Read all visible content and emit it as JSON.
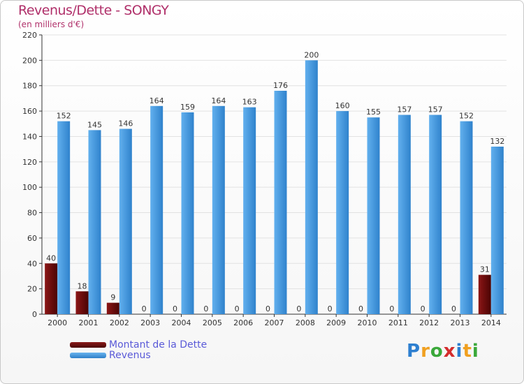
{
  "chart_data": {
    "type": "bar",
    "title": "Revenus/Dette - SONGY",
    "subtitle": "(en milliers d'€)",
    "categories": [
      "2000",
      "2001",
      "2002",
      "2003",
      "2004",
      "2005",
      "2006",
      "2007",
      "2008",
      "2009",
      "2010",
      "2011",
      "2012",
      "2013",
      "2014"
    ],
    "series": [
      {
        "name": "Montant de la Dette",
        "color": "#6b0a0a",
        "values": [
          40,
          18,
          9,
          0,
          0,
          0,
          0,
          0,
          0,
          0,
          0,
          0,
          0,
          0,
          31
        ]
      },
      {
        "name": "Revenus",
        "color": "#3d95dc",
        "values": [
          152,
          145,
          146,
          164,
          159,
          164,
          163,
          176,
          200,
          160,
          155,
          157,
          157,
          152,
          132
        ]
      }
    ],
    "ylim": [
      0,
      220
    ],
    "yticks": [
      0,
      20,
      40,
      60,
      80,
      100,
      120,
      140,
      160,
      180,
      200,
      220
    ],
    "grid": true,
    "legend_position": "bottom-left"
  },
  "logo": {
    "letters": [
      "P",
      "r",
      "o",
      "x",
      "i",
      "t",
      "i"
    ],
    "colors": [
      "#2d7fd0",
      "#f0a020",
      "#3aa83a",
      "#d42c2c",
      "#2d7fd0",
      "#f0a020",
      "#3aa83a"
    ]
  }
}
